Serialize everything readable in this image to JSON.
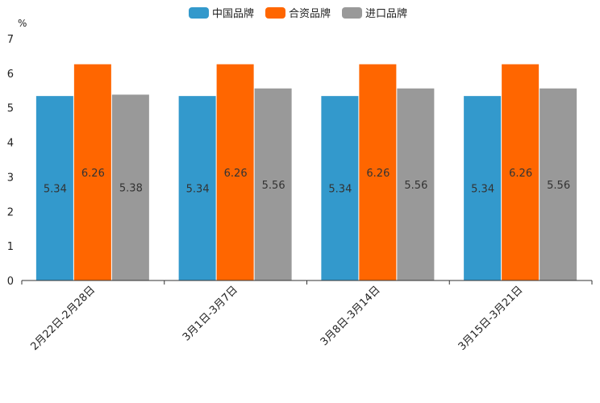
{
  "chart_data": {
    "type": "bar",
    "title": "",
    "xlabel": "",
    "ylabel": "%",
    "ylim": [
      0,
      7
    ],
    "yticks": [
      0,
      1,
      2,
      3,
      4,
      5,
      6,
      7
    ],
    "grid": false,
    "legend_position": "top-center",
    "categories": [
      "2月22日-2月28日",
      "3月1日-3月7日",
      "3月8日-3月14日",
      "3月15日-3月21日"
    ],
    "series": [
      {
        "name": "中国品牌",
        "color": "#3399cc",
        "values": [
          5.34,
          5.34,
          5.34,
          5.34
        ],
        "labels": [
          "5.34",
          "5.34",
          "5.34",
          "5.34"
        ]
      },
      {
        "name": "合资品牌",
        "color": "#ff6600",
        "values": [
          6.26,
          6.26,
          6.26,
          6.26
        ],
        "labels": [
          "6.26",
          "6.26",
          "6.26",
          "6.26"
        ]
      },
      {
        "name": "进口品牌",
        "color": "#999999",
        "values": [
          5.38,
          5.56,
          5.56,
          5.56
        ],
        "labels": [
          "5.38",
          "5.56",
          "5.56",
          "5.56"
        ]
      }
    ]
  }
}
